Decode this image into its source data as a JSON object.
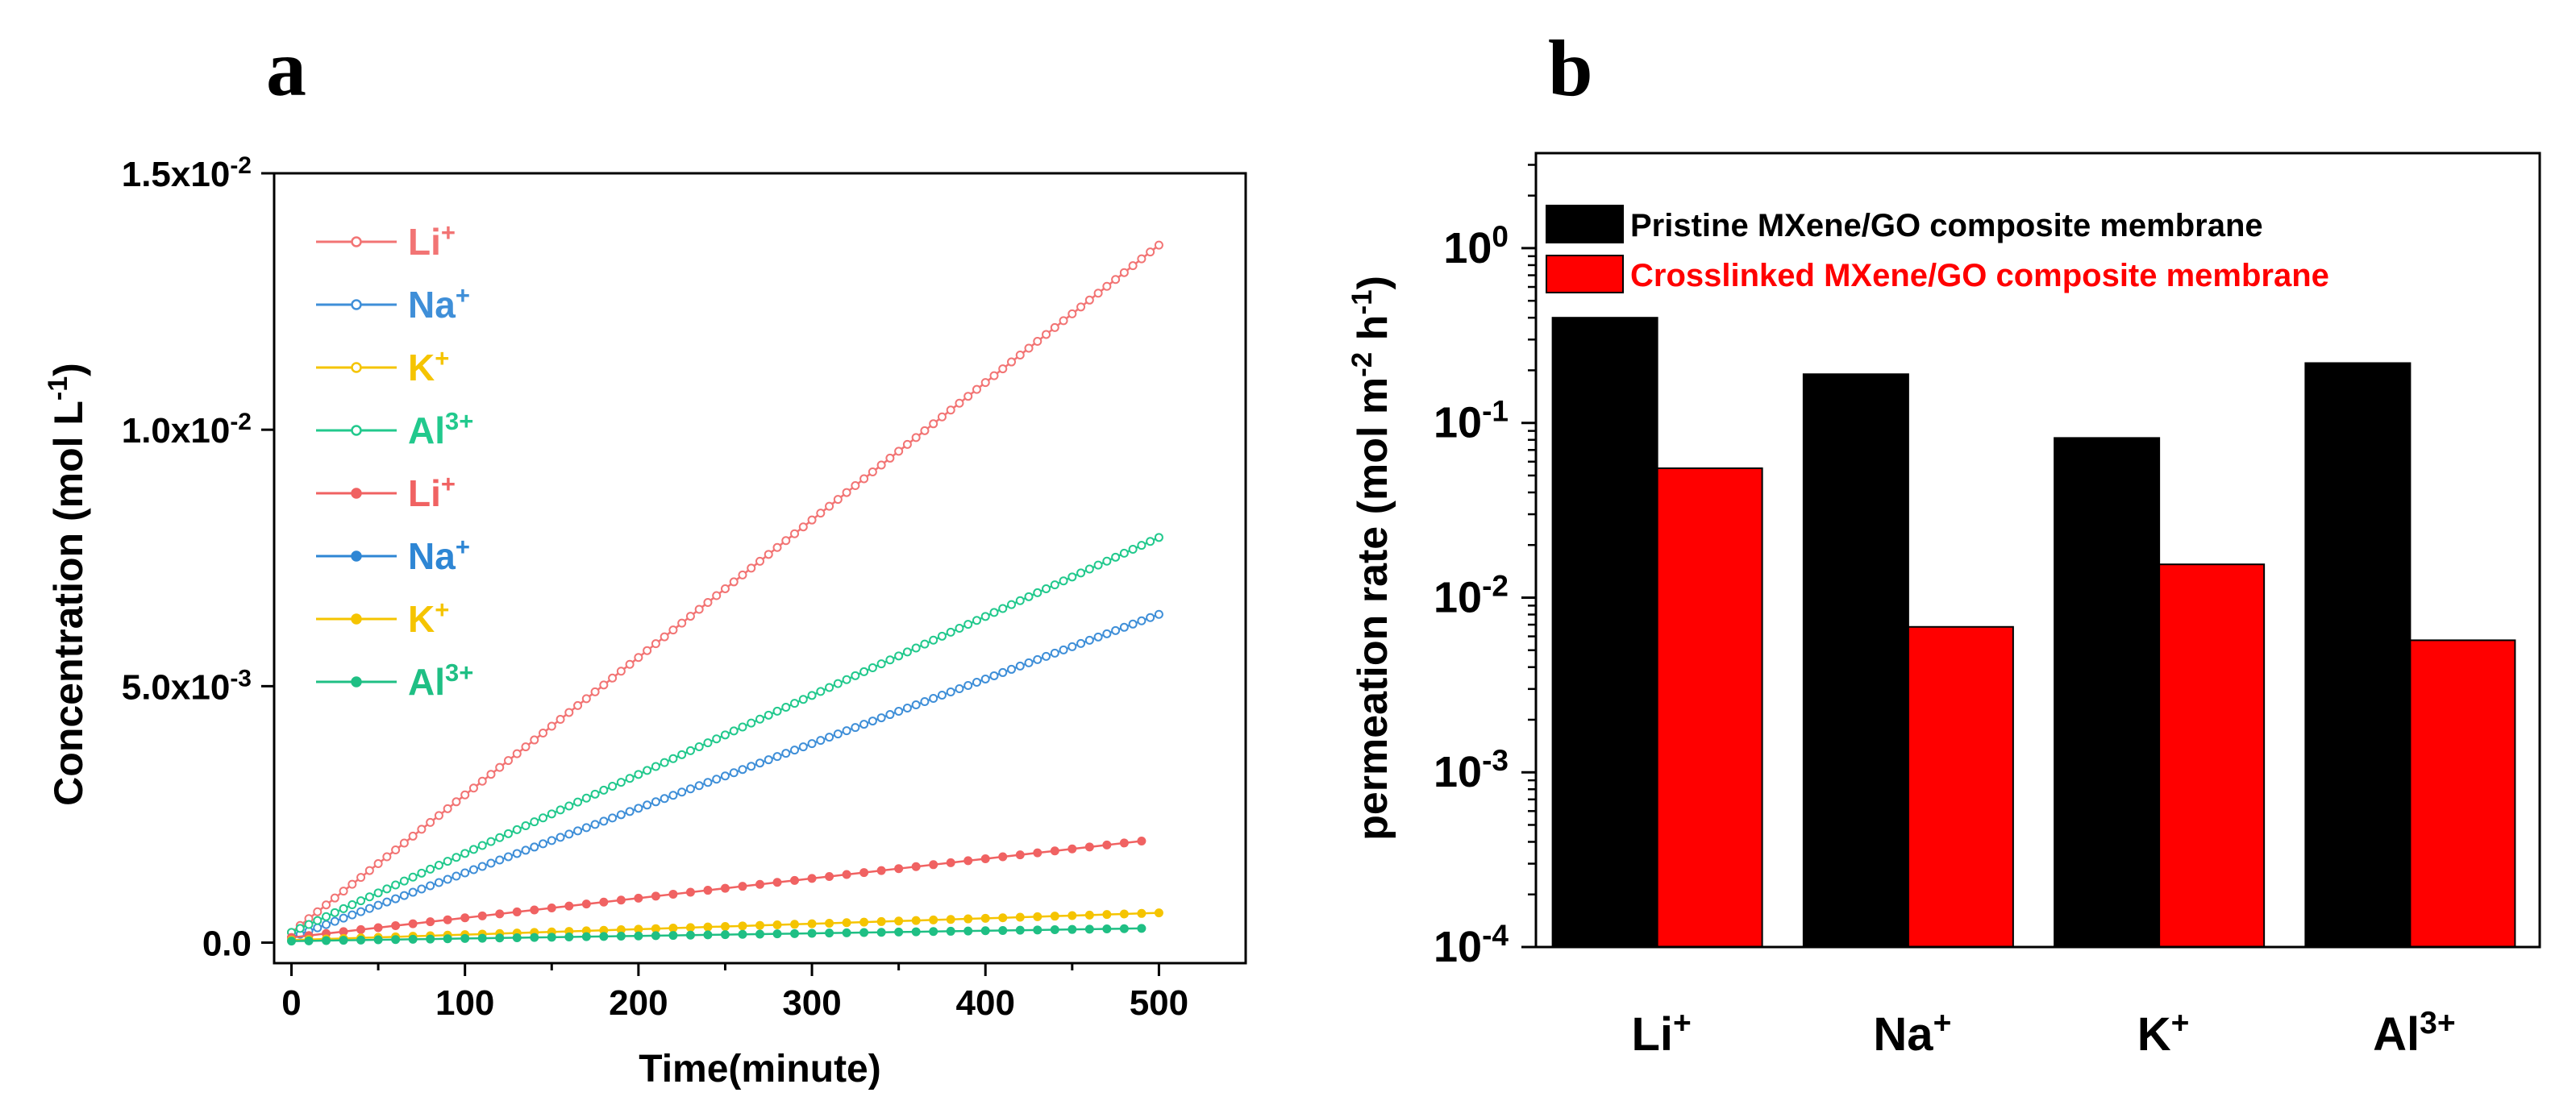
{
  "panels": {
    "a": {
      "letter": "a"
    },
    "b": {
      "letter": "b"
    }
  },
  "chart_data": [
    {
      "type": "scatter",
      "panel": "a",
      "xlabel": "Time(minute)",
      "ylabel": "Concentration (mol L",
      "ylabel_sup": "-1",
      "ylabel_suffix": ")",
      "xlim": [
        -10,
        550
      ],
      "ylim": [
        -0.0004,
        0.015
      ],
      "xticks": [
        0,
        100,
        200,
        300,
        400,
        500
      ],
      "xtick_labels": [
        "0",
        "100",
        "200",
        "300",
        "400",
        "500"
      ],
      "yticks": [
        0,
        0.005,
        0.01,
        0.015
      ],
      "ytick_labels": [
        {
          "base": "0.0",
          "exp": ""
        },
        {
          "base": "5.0x10",
          "exp": "-3"
        },
        {
          "base": "1.0x10",
          "exp": "-2"
        },
        {
          "base": "1.5x10",
          "exp": "-2"
        }
      ],
      "grid": false,
      "legend_position": "top-left",
      "legend_entries": [
        {
          "base": "Li",
          "sup": "+",
          "color": "#f27474",
          "marker": "open"
        },
        {
          "base": "Na",
          "sup": "+",
          "color": "#3f8fd8",
          "marker": "open"
        },
        {
          "base": "K",
          "sup": "+",
          "color": "#f5c400",
          "marker": "open"
        },
        {
          "base": "Al",
          "sup": "3+",
          "color": "#22c98d",
          "marker": "open"
        },
        {
          "base": "Li",
          "sup": "+",
          "color": "#f06262",
          "marker": "filled"
        },
        {
          "base": "Na",
          "sup": "+",
          "color": "#2e86d4",
          "marker": "filled"
        },
        {
          "base": "K",
          "sup": "+",
          "color": "#f5c400",
          "marker": "filled"
        },
        {
          "base": "Al",
          "sup": "3+",
          "color": "#1fbf84",
          "marker": "filled"
        }
      ],
      "series": [
        {
          "color": "#f27474",
          "marker": "open",
          "x_start": 0,
          "x_end": 500,
          "step": 5,
          "y_start": 0.0002,
          "y_end": 0.0136
        },
        {
          "color": "#3f8fd8",
          "marker": "open",
          "x_start": 0,
          "x_end": 500,
          "step": 5,
          "y_start": 0.0001,
          "y_end": 0.0064
        },
        {
          "color": "#22c98d",
          "marker": "open",
          "x_start": 0,
          "x_end": 500,
          "step": 5,
          "y_start": 0.0002,
          "y_end": 0.0079
        },
        {
          "color": "#f06262",
          "marker": "filled",
          "x_start": 0,
          "x_end": 495,
          "step": 10,
          "y_start": 0.0001,
          "y_end": 0.002
        },
        {
          "color": "#f5c400",
          "marker": "filled",
          "x_start": 0,
          "x_end": 500,
          "step": 10,
          "y_start": 5e-05,
          "y_end": 0.00058
        },
        {
          "color": "#1fbf84",
          "marker": "filled",
          "x_start": 0,
          "x_end": 495,
          "step": 10,
          "y_start": 3e-05,
          "y_end": 0.00028
        }
      ]
    },
    {
      "type": "bar",
      "panel": "b",
      "ylabel": "permeation rate (mol m",
      "ylabel_sup1": "-2",
      "ylabel_mid": " h",
      "ylabel_sup2": "-1",
      "ylabel_suffix": ")",
      "yscale": "log",
      "ylim": [
        0.0001,
        3.5
      ],
      "yticks": [
        0.0001,
        0.001,
        0.01,
        0.1,
        1
      ],
      "ytick_labels": [
        {
          "base": "10",
          "exp": "-4"
        },
        {
          "base": "10",
          "exp": "-3"
        },
        {
          "base": "10",
          "exp": "-2"
        },
        {
          "base": "10",
          "exp": "-1"
        },
        {
          "base": "10",
          "exp": "0"
        }
      ],
      "categories": [
        {
          "base": "Li",
          "sup": "+"
        },
        {
          "base": "Na",
          "sup": "+"
        },
        {
          "base": "K",
          "sup": "+"
        },
        {
          "base": "Al",
          "sup": "3+"
        }
      ],
      "grid": false,
      "legend_position": "top-left",
      "series": [
        {
          "name": "Pristine MXene/GO composite membrane",
          "color": "#000000",
          "values": [
            0.4,
            0.19,
            0.082,
            0.22
          ]
        },
        {
          "name": "Crosslinked MXene/GO composite membrane",
          "color": "#ff0000",
          "values": [
            0.055,
            0.0068,
            0.0155,
            0.0057
          ]
        }
      ]
    }
  ]
}
